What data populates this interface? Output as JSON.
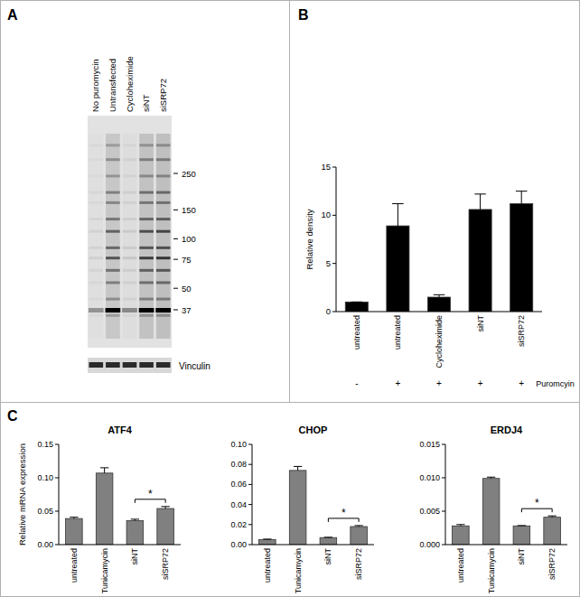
{
  "panel_labels": [
    "A",
    "B",
    "C"
  ],
  "blot": {
    "lanes": [
      "No puromycin",
      "Untransfected",
      "Cycloheximide",
      "siNT",
      "siSRP72"
    ],
    "markers": [
      250,
      150,
      100,
      75,
      50,
      37
    ],
    "loading_control": "Vinculin"
  },
  "chart_data": [
    {
      "type": "bar",
      "y_label": "Relative density",
      "categories": [
        "untreated",
        "untreated",
        "Cycloheximide",
        "siNT",
        "siSRP72"
      ],
      "values": [
        1,
        8.9,
        1.5,
        10.6,
        11.2
      ],
      "errors": [
        0,
        2.3,
        0.25,
        1.6,
        1.3
      ],
      "color": "#000000",
      "ylim": [
        0,
        15
      ],
      "yticks": [
        0,
        5,
        10,
        15
      ],
      "treatment_signs": [
        "-",
        "+",
        "+",
        "+",
        "+"
      ],
      "treatment_label": "Puromcyin"
    },
    {
      "type": "bar",
      "title": "ATF4",
      "y_label": "Relative mRNA expression",
      "categories": [
        "untreated",
        "Tunicamycin",
        "siNT",
        "siSRP72"
      ],
      "values": [
        0.039,
        0.107,
        0.036,
        0.054
      ],
      "errors": [
        0.002,
        0.008,
        0.002,
        0.003
      ],
      "color": "#808080",
      "ylim": [
        0,
        0.15
      ],
      "yticks": [
        {
          "value": 0,
          "label": "0.00"
        },
        {
          "value": 0.05,
          "label": "0.05"
        },
        {
          "value": 0.1,
          "label": "0.10"
        },
        {
          "value": 0.15,
          "label": "0.15"
        }
      ],
      "significance": {
        "text": "*",
        "categories": [
          "siNT",
          "siSRP72"
        ]
      }
    },
    {
      "type": "bar",
      "title": "CHOP",
      "categories": [
        "untreated",
        "Tunicamycin",
        "siNT",
        "siSRP72"
      ],
      "values": [
        0.005,
        0.074,
        0.007,
        0.018
      ],
      "errors": [
        0.0005,
        0.004,
        0.0003,
        0.001
      ],
      "color": "#808080",
      "ylim": [
        0,
        0.1
      ],
      "yticks": [
        {
          "value": 0,
          "label": "0.00"
        },
        {
          "value": 0.02,
          "label": "0.02"
        },
        {
          "value": 0.04,
          "label": "0.04"
        },
        {
          "value": 0.06,
          "label": "0.06"
        },
        {
          "value": 0.08,
          "label": "0.08"
        },
        {
          "value": 0.1,
          "label": "0.10"
        }
      ],
      "significance": {
        "text": "*",
        "categories": [
          "siNT",
          "siSRP72"
        ]
      }
    },
    {
      "type": "bar",
      "title": "ERDJ4",
      "categories": [
        "untreated",
        "Tunicamycin",
        "siNT",
        "siSRP72"
      ],
      "values": [
        0.0028,
        0.0099,
        0.0028,
        0.0041
      ],
      "errors": [
        0.0002,
        0.0002,
        5e-05,
        0.0002
      ],
      "color": "#808080",
      "ylim": [
        0,
        0.015
      ],
      "yticks": [
        {
          "value": 0,
          "label": "0.000"
        },
        {
          "value": 0.005,
          "label": "0.005"
        },
        {
          "value": 0.01,
          "label": "0.010"
        },
        {
          "value": 0.015,
          "label": "0.015"
        }
      ],
      "significance": {
        "text": "*",
        "categories": [
          "siNT",
          "siSRP72"
        ]
      }
    }
  ]
}
